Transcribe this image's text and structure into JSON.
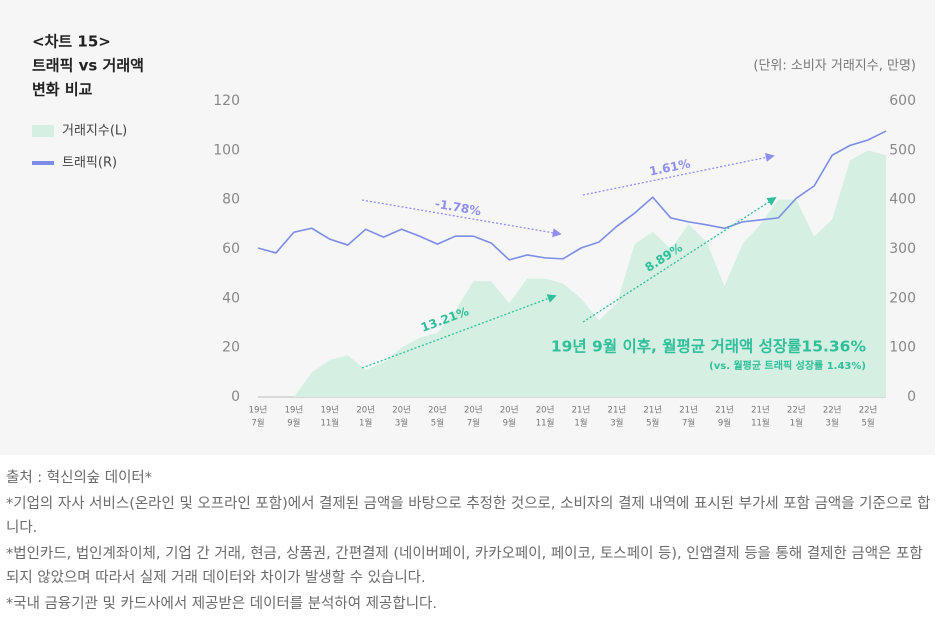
{
  "chart_data": {
    "type": "combo",
    "title": [
      "<차트 15>",
      "트래픽 vs 거래액",
      "변화 비교"
    ],
    "unit_label": "(단위: 소비자 거래지수, 만명)",
    "categories": [
      [
        "19년",
        "7월"
      ],
      null,
      [
        "19년",
        "9월"
      ],
      null,
      [
        "19년",
        "11월"
      ],
      null,
      [
        "20년",
        "1월"
      ],
      null,
      [
        "20년",
        "3월"
      ],
      null,
      [
        "20년",
        "5월"
      ],
      null,
      [
        "20년",
        "7월"
      ],
      null,
      [
        "20년",
        "9월"
      ],
      null,
      [
        "20년",
        "11월"
      ],
      null,
      [
        "21년",
        "1월"
      ],
      null,
      [
        "21년",
        "3월"
      ],
      null,
      [
        "21년",
        "5월"
      ],
      null,
      [
        "21년",
        "7월"
      ],
      null,
      [
        "21년",
        "9월"
      ],
      null,
      [
        "21년",
        "11월"
      ],
      null,
      [
        "22년",
        "1월"
      ],
      null,
      [
        "22년",
        "3월"
      ],
      null,
      [
        "22년",
        "5월"
      ],
      null
    ],
    "series": [
      {
        "name": "거래지수(L)",
        "type": "area",
        "axis": "y",
        "color": "#d5f0e2",
        "values": [
          0,
          0,
          0,
          10,
          15,
          17,
          11,
          14,
          20,
          24,
          26,
          35,
          47,
          47,
          38,
          48,
          48,
          46,
          40,
          31,
          38,
          62,
          67,
          60,
          70,
          63,
          45,
          62,
          70,
          80,
          80,
          65,
          72,
          96,
          100,
          98
        ]
      },
      {
        "name": "트래픽(R)",
        "type": "line",
        "axis": "y2",
        "color": "#7b8de6",
        "values": [
          302,
          292,
          334,
          342,
          320,
          308,
          340,
          324,
          340,
          326,
          310,
          326,
          326,
          312,
          278,
          288,
          282,
          280,
          302,
          314,
          346,
          373,
          405,
          363,
          355,
          349,
          342,
          355,
          359,
          363,
          403,
          428,
          490,
          510,
          521,
          539
        ]
      }
    ],
    "ylim": [
      0,
      120
    ],
    "yticks": [
      0,
      20,
      40,
      60,
      80,
      100,
      120
    ],
    "y2lim": [
      0,
      600
    ],
    "y2ticks": [
      0,
      100,
      200,
      300,
      400,
      500,
      600
    ],
    "annotations": [
      {
        "text": "-1.78%",
        "color": "#8f8ff0"
      },
      {
        "text": "1.61%",
        "color": "#8f8ff0"
      },
      {
        "text": "13.21%",
        "color": "#2fbf9a"
      },
      {
        "text": "8.89%",
        "color": "#2fbf9a"
      }
    ],
    "headline": "19년 9월 이후, 월평균 거래액 성장률15.36%",
    "subheadline": "(vs. 월평균 트래픽 성장률 1.43%)",
    "footnotes": [
      "출처 : 혁신의숲 데이터*",
      "*기업의 자사 서비스(온라인 및 오프라인 포함)에서 결제된 금액을 바탕으로 추정한 것으로, 소비자의 결제 내역에 표시된 부가세 포함 금액을 기준으로 합니다.",
      "*법인카드, 법인계좌이체, 기업 간 거래, 현금, 상품권, 간편결제 (네이버페이, 카카오페이, 페이코, 토스페이 등), 인앱결제 등을 통해 결제한 금액은 포함되지 않았으며 따라서 실제 거래 데이터와 차이가 발생할 수 있습니다.",
      "*국내 금융기관 및 카드사에서 제공받은 데이터를 분석하여 제공합니다."
    ]
  }
}
